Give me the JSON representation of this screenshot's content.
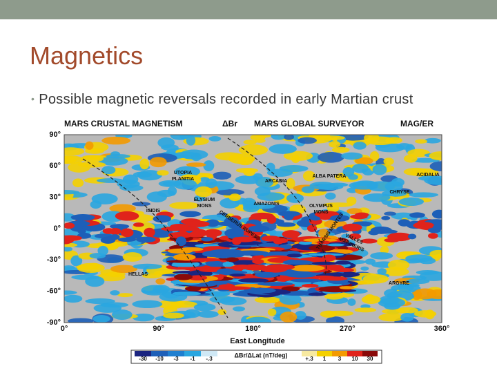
{
  "header": {
    "title": "Magnetics"
  },
  "bullets": [
    "Possible magnetic reversals recorded in early Martian crust"
  ],
  "figure": {
    "title": "MARS CRUSTAL MAGNETISM",
    "quantity": "ΔBr",
    "mission": "MARS GLOBAL SURVEYOR",
    "instrument": "MAG/ER",
    "y_axis_labels": [
      "90°",
      "60°",
      "30°",
      "0°",
      "-30°",
      "-60°",
      "-90°"
    ],
    "x_axis_labels": [
      "0°",
      "90°",
      "180°",
      "270°",
      "360°"
    ],
    "x_axis_title": "East Longitude",
    "colorbar": {
      "negative_labels": [
        "-30",
        "-10",
        "-3",
        "-1",
        "-.3"
      ],
      "label": "ΔBr/ΔLat (nT/deg)",
      "positive_labels": [
        "+.3",
        "1",
        "3",
        "10",
        "30"
      ]
    },
    "places": [
      {
        "lines": [
          "UTOPIA",
          "PLANITIA"
        ]
      },
      {
        "lines": [
          "ELYSIUM",
          "MONS"
        ]
      },
      {
        "lines": [
          "ISIDIS"
        ]
      },
      {
        "lines": [
          "ARCADIA"
        ]
      },
      {
        "lines": [
          "ALBA PATERA"
        ]
      },
      {
        "lines": [
          "ACIDALIA"
        ]
      },
      {
        "lines": [
          "CHRYSE"
        ]
      },
      {
        "lines": [
          "AMAZONIS"
        ]
      },
      {
        "lines": [
          "OLYMPUS",
          "MONS"
        ]
      },
      {
        "lines": [
          "CERBERUS RUPES"
        ]
      },
      {
        "lines": [
          "THARSIS MONTES"
        ]
      },
      {
        "lines": [
          "VALLES",
          "MARINERIS"
        ]
      },
      {
        "lines": [
          "HELLAS"
        ]
      },
      {
        "lines": [
          "ARGYRE"
        ]
      }
    ]
  }
}
